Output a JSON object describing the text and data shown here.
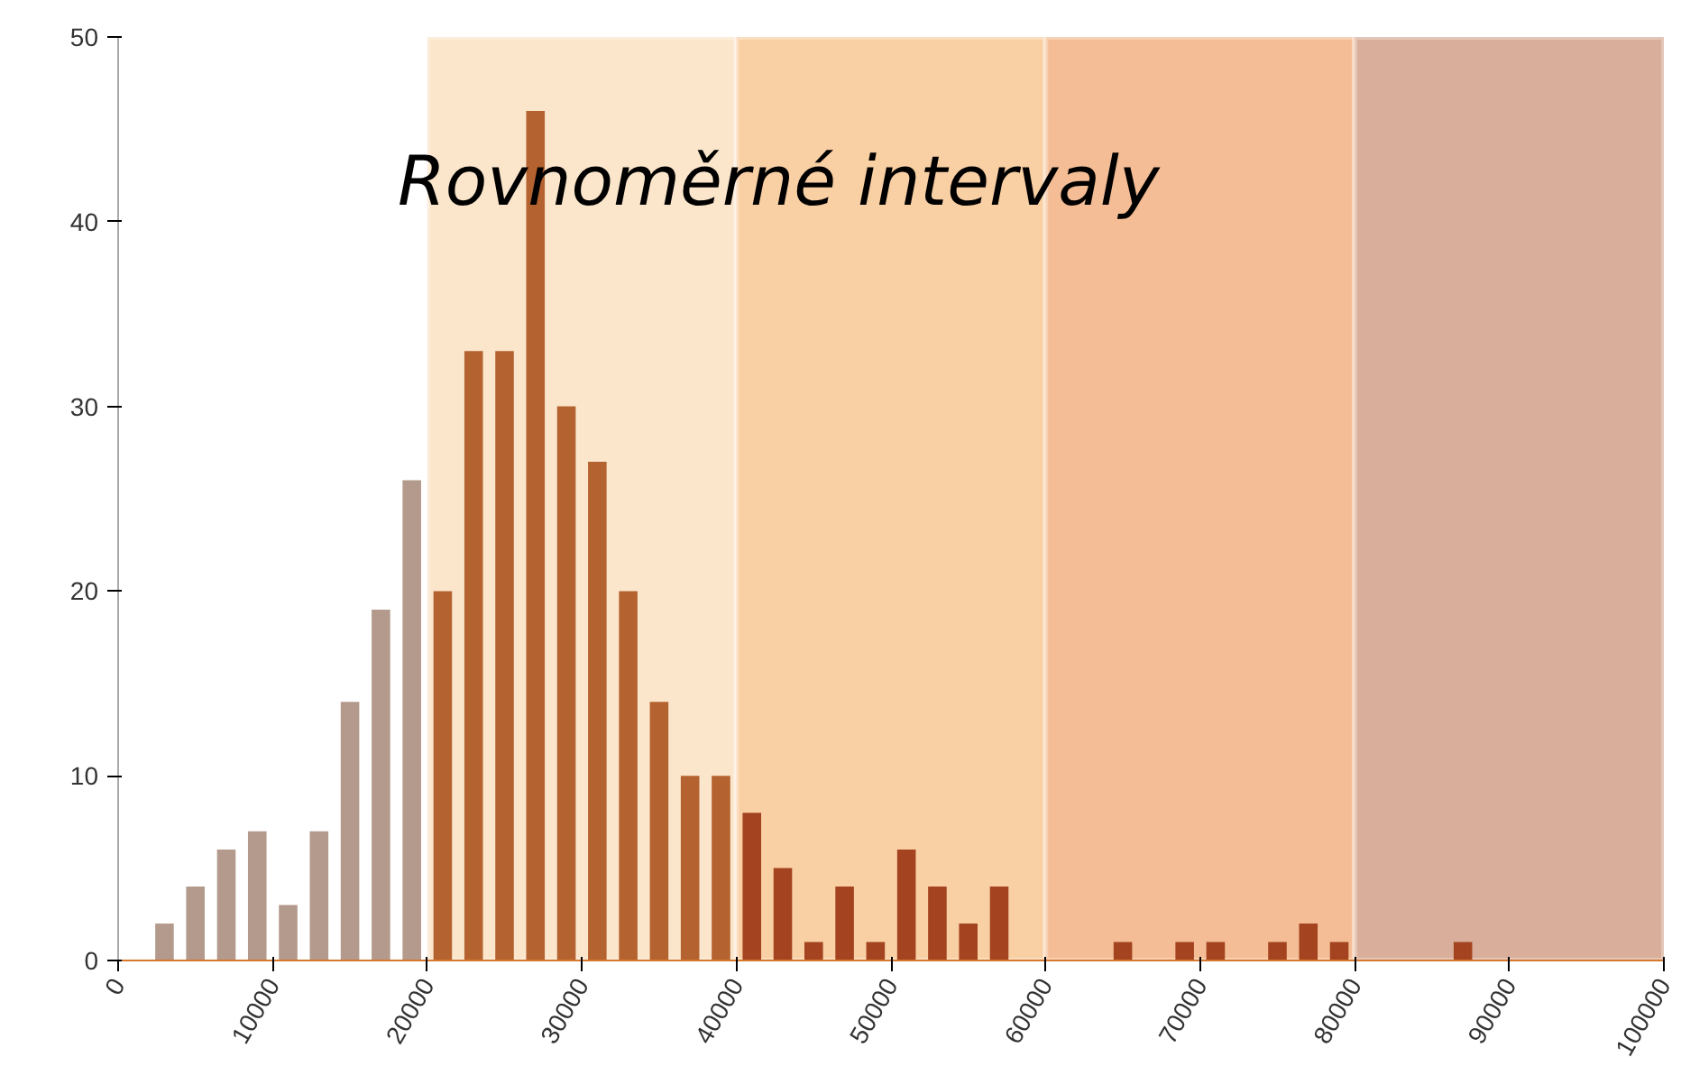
{
  "chart_data": {
    "type": "histogram",
    "annotations": [
      "Rovnoměrné intervaly"
    ],
    "bins": [
      0,
      2000,
      4000,
      6000,
      8000,
      10000,
      12000,
      14000,
      16000,
      18000,
      20000,
      22000,
      24000,
      26000,
      28000,
      30000,
      32000,
      34000,
      36000,
      38000,
      40000,
      42000,
      44000,
      46000,
      48000,
      50000,
      52000,
      54000,
      56000,
      58000,
      60000,
      62000,
      64000,
      66000,
      68000,
      70000,
      72000,
      74000,
      76000,
      78000,
      80000,
      82000,
      84000,
      86000,
      88000,
      90000,
      92000,
      94000,
      96000,
      98000,
      100000
    ],
    "values": [
      0,
      2,
      4,
      6,
      7,
      3,
      7,
      14,
      19,
      26,
      20,
      33,
      33,
      46,
      30,
      27,
      20,
      14,
      10,
      10,
      8,
      5,
      1,
      4,
      1,
      6,
      4,
      2,
      4,
      0,
      0,
      0,
      1,
      0,
      1,
      1,
      0,
      1,
      2,
      1,
      0,
      0,
      0,
      1,
      0,
      0,
      0,
      0,
      0,
      0
    ],
    "colors": [
      "#b39a8c",
      "#b39a8c",
      "#b39a8c",
      "#b39a8c",
      "#b39a8c",
      "#b39a8c",
      "#b39a8c",
      "#b39a8c",
      "#b39a8c",
      "#b39a8c",
      "#b4622f",
      "#b4622f",
      "#b4622f",
      "#b4622f",
      "#b4622f",
      "#b4622f",
      "#b4622f",
      "#b4622f",
      "#b4622f",
      "#b4622f",
      "#a3431f",
      "#a3431f",
      "#a3431f",
      "#a3431f",
      "#a3431f",
      "#a3431f",
      "#a3431f",
      "#a3431f",
      "#a3431f",
      "#a3431f",
      "#a3431f",
      "#a3431f",
      "#a3431f",
      "#a3431f",
      "#a3431f",
      "#a3431f",
      "#a3431f",
      "#a3431f",
      "#a3431f",
      "#a3431f",
      "#a3431f",
      "#a3431f",
      "#a3431f",
      "#a3431f",
      "#a3431f",
      "#a3431f",
      "#a3431f",
      "#a3431f",
      "#a3431f",
      "#a3431f"
    ],
    "bands": [
      {
        "axis": "x",
        "from": 20000,
        "to": 40000,
        "color": "#fbe6cc"
      },
      {
        "axis": "x",
        "from": 40000,
        "to": 60000,
        "color": "#f9cfa4"
      },
      {
        "axis": "x",
        "from": 60000,
        "to": 80000,
        "color": "#f4bd95"
      },
      {
        "axis": "x",
        "from": 80000,
        "to": 100000,
        "color": "#d9ae9a"
      }
    ],
    "xlim": [
      0,
      100000
    ],
    "xticks": [
      0,
      10000,
      20000,
      30000,
      40000,
      50000,
      60000,
      70000,
      80000,
      90000,
      100000
    ],
    "ylim": [
      0,
      50
    ],
    "yticks": [
      0,
      10,
      20,
      30,
      40,
      50
    ],
    "grid": false
  }
}
